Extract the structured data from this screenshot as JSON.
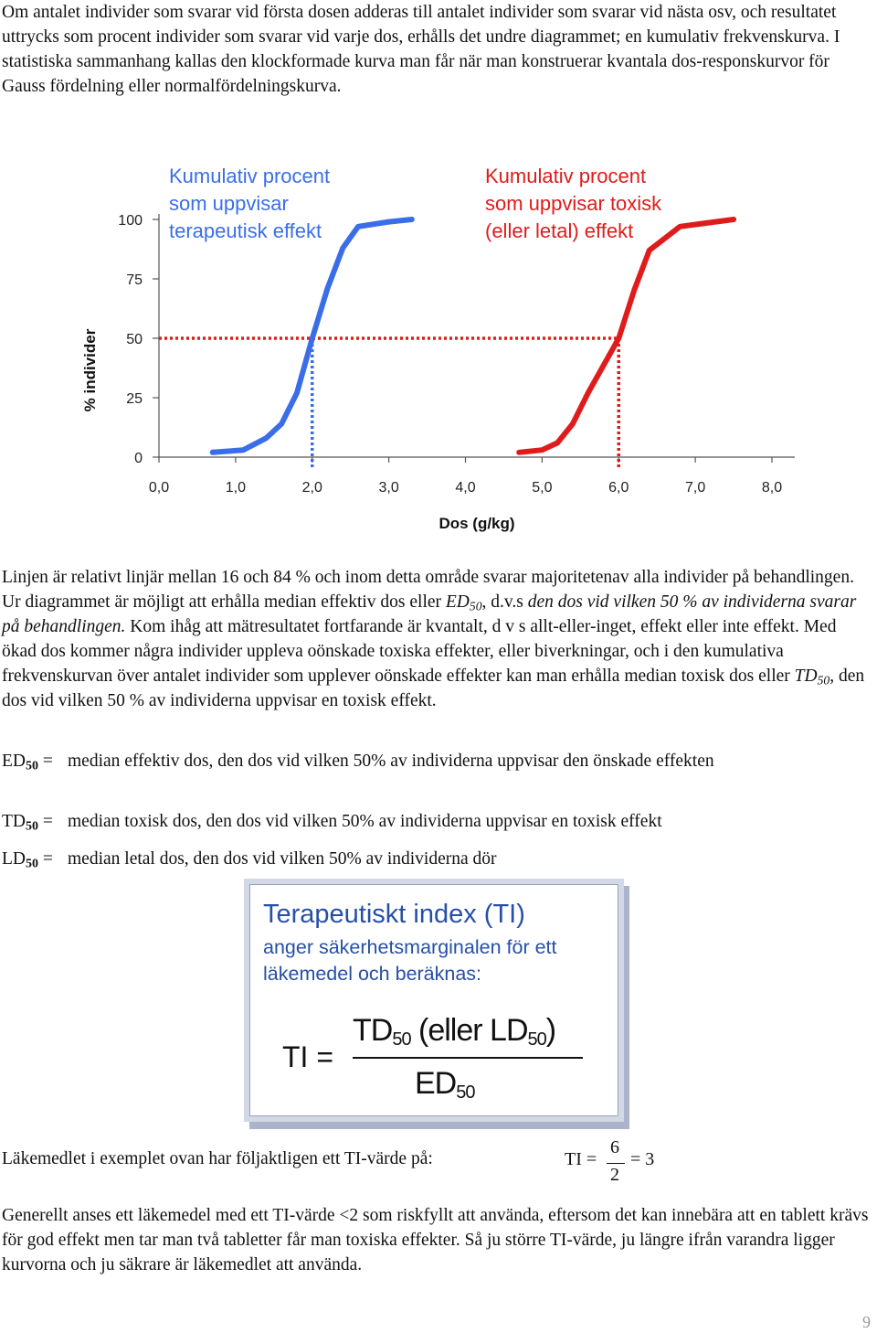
{
  "intro": {
    "text": "Om antalet individer som svarar vid första dosen adderas till antalet individer som svarar vid nästa osv, och resultatet uttrycks som procent individer som svarar vid varje dos, erhålls det undre diagrammet; en kumulativ frekvenskurva. I statistiska sammanhang kallas den klockformade kurva man får när man konstruerar kvantala dos-responskurvor för Gauss fördelning eller normalfördelningskurva."
  },
  "chart_data": {
    "type": "line",
    "ylabel": "% individer",
    "xlabel": "Dos (g/kg)",
    "y_ticks": [
      "100",
      "75",
      "50",
      "25",
      "0"
    ],
    "x_ticks": [
      "0,0",
      "1,0",
      "2,0",
      "3,0",
      "4,0",
      "5,0",
      "6,0",
      "7,0",
      "8,0"
    ],
    "xlim": [
      0,
      8
    ],
    "ylim": [
      0,
      100
    ],
    "series": [
      {
        "name": "Kumulativ procent som uppvisar terapeutisk effekt",
        "name_lines": [
          "Kumulativ procent",
          "som uppvisar",
          "terapeutisk effekt"
        ],
        "color": "#3a6ee8",
        "x": [
          0.7,
          1.1,
          1.4,
          1.6,
          1.8,
          2.0,
          2.2,
          2.4,
          2.6,
          3.0,
          3.3
        ],
        "y": [
          2,
          3,
          8,
          14,
          27,
          50,
          71,
          88,
          97,
          99,
          100
        ]
      },
      {
        "name": "Kumulativ procent som uppvisar toxisk (eller letal) effekt",
        "name_lines": [
          "Kumulativ procent",
          "som uppvisar toxisk",
          "(eller letal) effekt"
        ],
        "color": "#e01b1b",
        "x": [
          4.7,
          5.0,
          5.2,
          5.4,
          5.6,
          6.0,
          6.2,
          6.4,
          6.8,
          7.5
        ],
        "y": [
          2,
          3,
          6,
          14,
          27,
          50,
          70,
          87,
          97,
          100
        ]
      }
    ],
    "reference_lines": [
      {
        "type": "horizontal",
        "y": 50,
        "color": "#e01b1b",
        "style": "dotted"
      },
      {
        "type": "vertical",
        "x": 2.0,
        "color": "#3a6ee8",
        "style": "dotted"
      },
      {
        "type": "vertical",
        "x": 6.0,
        "color": "#e01b1b",
        "style": "dotted"
      }
    ]
  },
  "para2": {
    "s1": "Linjen är relativt linjär mellan 16 och 84 % och inom detta område svarar majoritetenav alla individer på behandlingen. Ur diagrammet är möjligt att erhålla median effektiv dos eller ",
    "ed": "ED",
    "sub50": "50",
    "s2": ", d.v.s ",
    "s2_italic": "den dos vid vilken 50 % av individerna svarar på behandlingen.",
    "s3": " Kom ihåg att mätresultatet fortfarande är kvantalt, d v s allt-eller-inget, effekt eller inte effekt. Med ökad dos kommer några individer uppleva oönskade toxiska effekter, eller biverkningar, och i den kumulativa frekvenskurvan över antalet individer som upplever oönskade effekter kan man erhålla median toxisk dos eller ",
    "td": "TD",
    "s4": ", den dos vid vilken 50 % av individerna uppvisar en toxisk effekt."
  },
  "definitions": [
    {
      "term": "ED",
      "sub": "50",
      "eq": " = ",
      "desc": "median effektiv dos, den dos vid vilken 50% av individerna uppvisar den önskade effekten"
    },
    {
      "term": "TD",
      "sub": "50",
      "eq": " = ",
      "desc": "median toxisk dos, den dos vid vilken 50% av individerna uppvisar en toxisk effekt"
    },
    {
      "term": "LD",
      "sub": "50",
      "eq": " = ",
      "desc": "median letal dos, den dos vid vilken 50% av individerna dör"
    }
  ],
  "ti_box": {
    "title": "Terapeutiskt index (TI)",
    "desc": "anger  säkerhetsmarginalen för ett läkemedel och beräknas:",
    "lhs": "TI =",
    "num_td": "TD",
    "num_sub1": "50",
    "num_mid": " (eller LD",
    "num_sub2": "50",
    "num_end": ")",
    "den_ed": "ED",
    "den_sub": "50"
  },
  "example": {
    "text": "Läkemedlet i exemplet ovan har följaktligen ett TI-värde på:",
    "ti": "TI",
    "eq1": "=",
    "numerator": "6",
    "denominator": "2",
    "eq2": "=",
    "result": "3"
  },
  "conclusion": {
    "text": "Generellt anses ett läkemedel med ett TI-värde <2 som riskfyllt att använda, eftersom det kan innebära att en tablett krävs för god effekt men tar man två tabletter får man toxiska effekter. Så ju större TI-värde, ju längre ifrån varandra ligger kurvorna och ju säkrare är läkemedlet att använda."
  },
  "page_number": "9"
}
